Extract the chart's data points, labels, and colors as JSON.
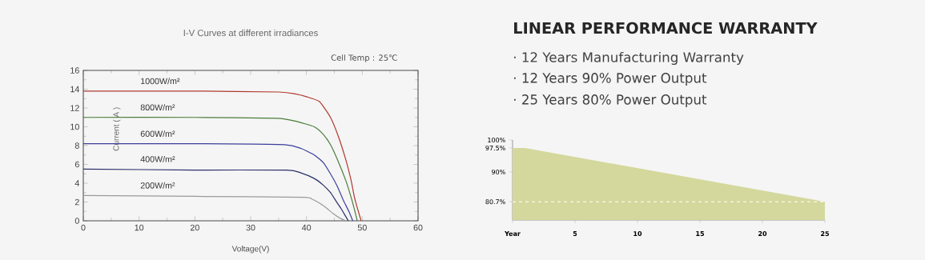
{
  "chart_data": [
    {
      "type": "line",
      "title": "I-V Curves at different irradiances",
      "xlabel": "Voltage(V)",
      "ylabel": "Current ( A )",
      "annotations": [
        "Cell Temp : 25℃"
      ],
      "xlim": [
        0,
        60
      ],
      "ylim": [
        0,
        16
      ],
      "xticks": [
        0,
        10,
        20,
        30,
        40,
        50,
        60
      ],
      "yticks": [
        0,
        2,
        4,
        6,
        8,
        10,
        12,
        14,
        16
      ],
      "marker": "none",
      "line_style": "solid",
      "series": [
        {
          "name": "1000W/m²",
          "color": "#b03a2e",
          "x": [
            0,
            20,
            35,
            38,
            40,
            42.3,
            44.3,
            45.7,
            47.1,
            48.0,
            48.6,
            49.2,
            49.8
          ],
          "values": [
            13.8,
            13.8,
            13.7,
            13.5,
            13.2,
            12.7,
            11.0,
            9.0,
            6.4,
            4.3,
            2.5,
            1.2,
            0
          ]
        },
        {
          "name": "800W/m²",
          "color": "#4a7d3a",
          "x": [
            0,
            20,
            34.7,
            38,
            41.4,
            43,
            44.3,
            45.7,
            47.1,
            48.0,
            48.6,
            49.1
          ],
          "values": [
            11.0,
            11.0,
            10.9,
            10.6,
            10.0,
            9.2,
            8.1,
            6.3,
            4.2,
            2.5,
            1.2,
            0
          ]
        },
        {
          "name": "600W/m²",
          "color": "#3b3f9a",
          "x": [
            0,
            20,
            36.1,
            39,
            41.4,
            43,
            44.3,
            45.5,
            46.6,
            47.6,
            48.3
          ],
          "values": [
            8.2,
            8.2,
            8.1,
            7.7,
            7.0,
            6.2,
            5.0,
            3.7,
            2.2,
            1.0,
            0
          ]
        },
        {
          "name": "400W/m²",
          "color": "#2a2f6a",
          "x": [
            0,
            20,
            36.5,
            39,
            41.4,
            43,
            44.3,
            45.3,
            46.2,
            47.0,
            47.5
          ],
          "values": [
            5.5,
            5.4,
            5.4,
            5.1,
            4.5,
            3.8,
            3.0,
            2.1,
            1.3,
            0.5,
            0
          ]
        },
        {
          "name": "200W/m²",
          "color": "#9a9a9a",
          "x": [
            0,
            20,
            39.5,
            41,
            42.3,
            43.5,
            44.7,
            45.8,
            47.0
          ],
          "values": [
            2.7,
            2.6,
            2.5,
            2.3,
            1.9,
            1.4,
            0.8,
            0.35,
            0
          ]
        }
      ]
    },
    {
      "type": "area",
      "title": "LINEAR PERFORMANCE WARRANTY",
      "annotations": [
        "· 12 Years Manufacturing Warranty",
        "· 12 Years 90% Power Output",
        "· 25 Years 80% Power Output"
      ],
      "xlim": [
        0,
        25
      ],
      "ylim": [
        75,
        100
      ],
      "xticks": [
        {
          "value": 0,
          "label": "Year"
        },
        5,
        10,
        15,
        20,
        25
      ],
      "yticks": [
        {
          "value": 80.7,
          "label": "80.7%"
        },
        {
          "value": 90,
          "label": "90%"
        },
        {
          "value": 97.5,
          "label": "97.5%"
        },
        {
          "value": 100,
          "label": "100%"
        }
      ],
      "ref_lines": [
        {
          "axis": "y",
          "value": 80.7,
          "color": "#ffffff",
          "line_style": "dashed"
        }
      ],
      "x": [
        0,
        1,
        25
      ],
      "values": [
        97.5,
        97.5,
        80.7
      ],
      "color": "#d4d89c"
    }
  ]
}
